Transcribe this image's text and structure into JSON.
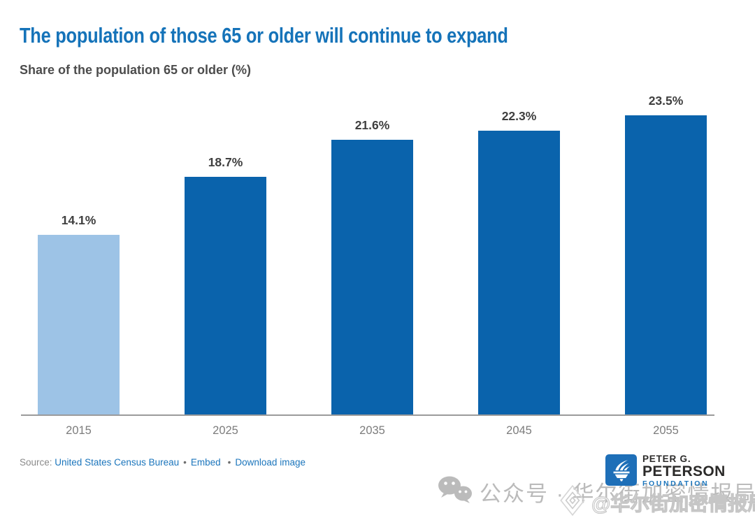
{
  "header": {
    "title": "The population of those 65 or older will continue to expand",
    "subtitle": "Share of the population 65 or older (%)"
  },
  "chart_data": {
    "type": "bar",
    "categories": [
      "2015",
      "2025",
      "2035",
      "2045",
      "2055"
    ],
    "values": [
      14.1,
      18.7,
      21.6,
      22.3,
      23.5
    ],
    "value_labels": [
      "14.1%",
      "18.7%",
      "21.6%",
      "22.3%",
      "23.5%"
    ],
    "bar_colors": [
      "#9DC3E6",
      "#0A63AC",
      "#0A63AC",
      "#0A63AC",
      "#0A63AC"
    ],
    "title": "The population of those 65 or older will continue to expand",
    "xlabel": "",
    "ylabel": "Share of the population 65 or older (%)",
    "ylim": [
      0,
      25
    ],
    "grid": false,
    "legend": false,
    "highlight_note": "2015 bar shown in light blue; projection years in dark blue"
  },
  "footer": {
    "source_prefix": "Source:",
    "source_link": "United States Census Bureau",
    "bullet": "•",
    "embed_link": "Embed",
    "download_link": "Download image"
  },
  "logo": {
    "line1": "PETER G.",
    "line2": "PETERSON",
    "line3": "FOUNDATION"
  },
  "watermarks": {
    "wechat_label": "公众号 · 华尔街加密情报局",
    "handle_label": "@华尔街加密情报局"
  },
  "colors": {
    "title_blue": "#1573B9",
    "bar_dark": "#0A63AC",
    "bar_light": "#9DC3E6",
    "link_blue": "#1B75BC",
    "axis_gray": "#9B9B9B",
    "subtitle_gray": "#4C4C4C",
    "value_label_gray": "#3F3F3F",
    "tick_gray": "#7C7C7C",
    "source_gray": "#8A8A8A",
    "watermark_gray": "#B8B8B8",
    "logo_square_blue": "#1E6FB8",
    "logo_text_dark": "#2B2A29"
  }
}
